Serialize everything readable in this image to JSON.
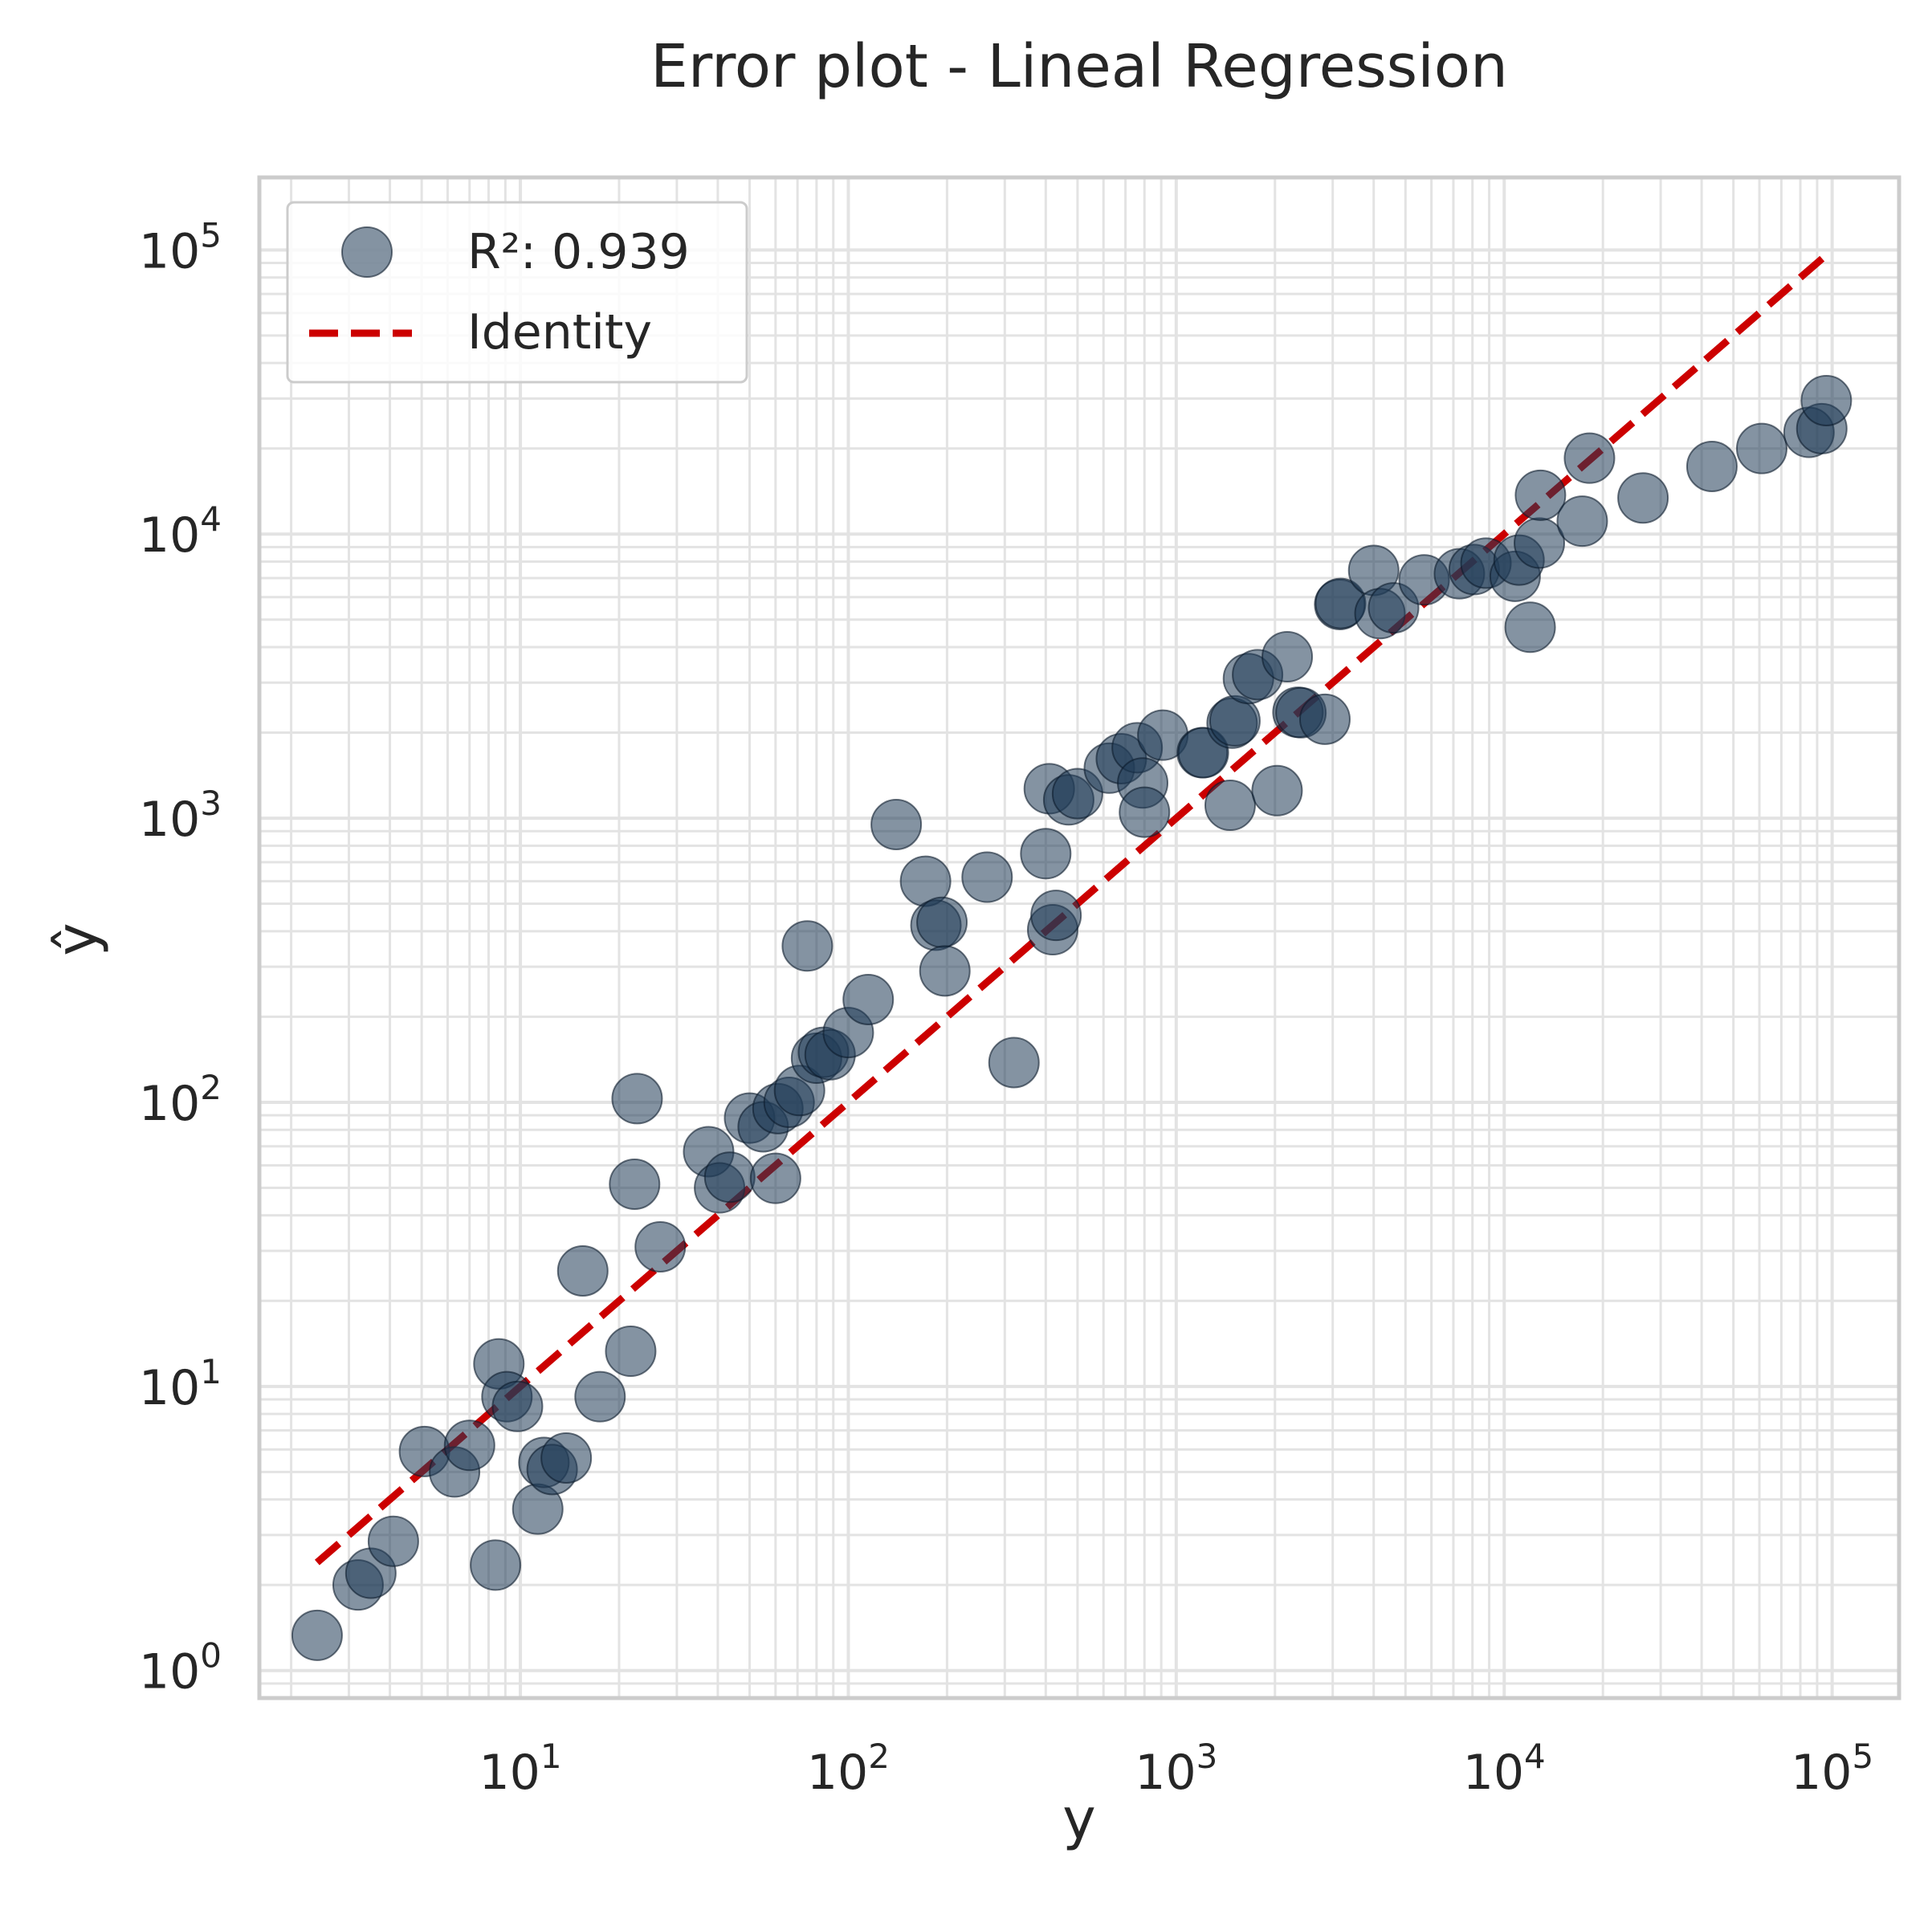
{
  "chart_data": {
    "type": "scatter",
    "title": "Error plot - Lineal Regression",
    "xlabel": "y",
    "ylabel": "ŷ",
    "xscale": "log",
    "yscale": "log",
    "xlim": [
      1.6,
      160000
    ],
    "ylim": [
      0.8,
      180000
    ],
    "grid": true,
    "legend_position": "top-left",
    "x_ticks": [
      {
        "value": 10,
        "base": "10",
        "exp": "1"
      },
      {
        "value": 100,
        "base": "10",
        "exp": "2"
      },
      {
        "value": 1000,
        "base": "10",
        "exp": "3"
      },
      {
        "value": 10000,
        "base": "10",
        "exp": "4"
      },
      {
        "value": 100000,
        "base": "10",
        "exp": "5"
      }
    ],
    "y_ticks": [
      {
        "value": 1,
        "base": "10",
        "exp": "0"
      },
      {
        "value": 10,
        "base": "10",
        "exp": "1"
      },
      {
        "value": 100,
        "base": "10",
        "exp": "2"
      },
      {
        "value": 1000,
        "base": "10",
        "exp": "3"
      },
      {
        "value": 10000,
        "base": "10",
        "exp": "4"
      },
      {
        "value": 100000,
        "base": "10",
        "exp": "5"
      }
    ],
    "series": [
      {
        "name": "R²: 0.939",
        "kind": "scatter",
        "color": "#1f3a56",
        "points": [
          [
            2.4,
            1.33
          ],
          [
            3.2,
            2.0
          ],
          [
            3.5,
            2.2
          ],
          [
            4.1,
            2.85
          ],
          [
            5.1,
            5.9
          ],
          [
            6.3,
            5.0
          ],
          [
            7.0,
            6.2
          ],
          [
            8.4,
            2.35
          ],
          [
            8.6,
            12.0
          ],
          [
            9.1,
            9.2
          ],
          [
            9.8,
            8.5
          ],
          [
            11.3,
            3.7
          ],
          [
            11.8,
            5.4
          ],
          [
            12.5,
            5.1
          ],
          [
            13.8,
            5.6
          ],
          [
            15.5,
            25.5
          ],
          [
            17.5,
            9.2
          ],
          [
            21.7,
            13.3
          ],
          [
            22.3,
            51.5
          ],
          [
            22.7,
            103.0
          ],
          [
            26.7,
            31.0
          ],
          [
            37.5,
            67.0
          ],
          [
            40.5,
            50.0
          ],
          [
            43.5,
            54.5
          ],
          [
            50.0,
            88.0
          ],
          [
            55.0,
            82.0
          ],
          [
            60.0,
            54.0
          ],
          [
            61.0,
            95.0
          ],
          [
            66.0,
            100.0
          ],
          [
            71.0,
            110.0
          ],
          [
            75.0,
            355.0
          ],
          [
            80.0,
            143.0
          ],
          [
            84.0,
            150.0
          ],
          [
            88.0,
            147.0
          ],
          [
            100.0,
            176.0
          ],
          [
            115.0,
            230.0
          ],
          [
            140.0,
            950.0
          ],
          [
            172.0,
            600.0
          ],
          [
            185.0,
            420.0
          ],
          [
            193.0,
            430.0
          ],
          [
            197.0,
            290.0
          ],
          [
            265.0,
            620.0
          ],
          [
            320.0,
            138.0
          ],
          [
            400.0,
            750.0
          ],
          [
            410.0,
            1270.0
          ],
          [
            420.0,
            405.0
          ],
          [
            430.0,
            455.0
          ],
          [
            470.0,
            1160.0
          ],
          [
            500.0,
            1220.0
          ],
          [
            625.0,
            1500.0
          ],
          [
            680.0,
            1620.0
          ],
          [
            760.0,
            1770.0
          ],
          [
            790.0,
            1330.0
          ],
          [
            800.0,
            1050.0
          ],
          [
            910.0,
            1960.0
          ],
          [
            1200.0,
            1700.0
          ],
          [
            1210.0,
            1700.0
          ],
          [
            1460.0,
            1110.0
          ],
          [
            1480.0,
            2160.0
          ],
          [
            1510.0,
            2200.0
          ],
          [
            1660.0,
            3100.0
          ],
          [
            1770.0,
            3200.0
          ],
          [
            2030.0,
            1250.0
          ],
          [
            2180.0,
            3700.0
          ],
          [
            2350.0,
            2360.0
          ],
          [
            2400.0,
            2350.0
          ],
          [
            2840.0,
            2230.0
          ],
          [
            3150.0,
            5650.0
          ],
          [
            3170.0,
            5700.0
          ],
          [
            4000.0,
            7450.0
          ],
          [
            4180.0,
            5250.0
          ],
          [
            4600.0,
            5500.0
          ],
          [
            5700.0,
            6900.0
          ],
          [
            7300.0,
            7250.0
          ],
          [
            8100.0,
            7500.0
          ],
          [
            8800.0,
            7900.0
          ],
          [
            10800.0,
            7100.0
          ],
          [
            11100.0,
            8100.0
          ],
          [
            12000.0,
            4700.0
          ],
          [
            12800.0,
            9300.0
          ],
          [
            12900.0,
            13700.0
          ],
          [
            17300.0,
            11100.0
          ],
          [
            18200.0,
            18500.0
          ],
          [
            26500.0,
            13400.0
          ],
          [
            43000.0,
            17300.0
          ],
          [
            61000.0,
            20000.0
          ],
          [
            85000.0,
            22800.0
          ],
          [
            93000.0,
            23500.0
          ],
          [
            96000.0,
            29500.0
          ]
        ]
      },
      {
        "name": "Identity",
        "kind": "line",
        "color": "#cc0000",
        "dash": "dashed",
        "points": [
          [
            2.4,
            2.4
          ],
          [
            95000,
            95000
          ]
        ]
      }
    ]
  }
}
